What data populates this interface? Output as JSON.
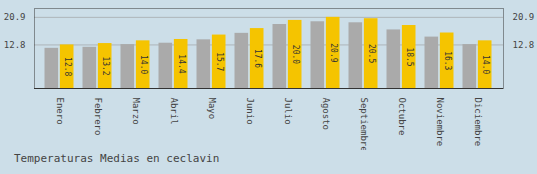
{
  "chart_data": {
    "type": "bar",
    "title": "Temperaturas Medias en ceclavin",
    "categories": [
      "Enero",
      "Febrero",
      "Marzo",
      "Abril",
      "Mayo",
      "Junio",
      "Julio",
      "Agosto",
      "Septiembre",
      "Octubre",
      "Noviembre",
      "Diciembre"
    ],
    "series": [
      {
        "color": "#AAAAAA",
        "values": [
          11.8,
          12.1,
          12.9,
          13.3,
          14.3,
          16.2,
          18.8,
          19.6,
          19.3,
          17.2,
          15.1,
          12.9
        ]
      },
      {
        "color": "#F5C400",
        "values": [
          12.8,
          13.2,
          14.0,
          14.4,
          15.7,
          17.6,
          20.0,
          20.9,
          20.5,
          18.5,
          16.3,
          14.0
        ],
        "value_labels": [
          "12.8",
          "13.2",
          "14.0",
          "14.4",
          "15.7",
          "17.6",
          "20.0",
          "20.9",
          "20.5",
          "18.5",
          "16.3",
          "14.0"
        ],
        "data_labels": true
      }
    ],
    "ylim": [
      0,
      23.5
    ],
    "yticks": [
      12.8,
      20.9
    ],
    "grid": true
  }
}
